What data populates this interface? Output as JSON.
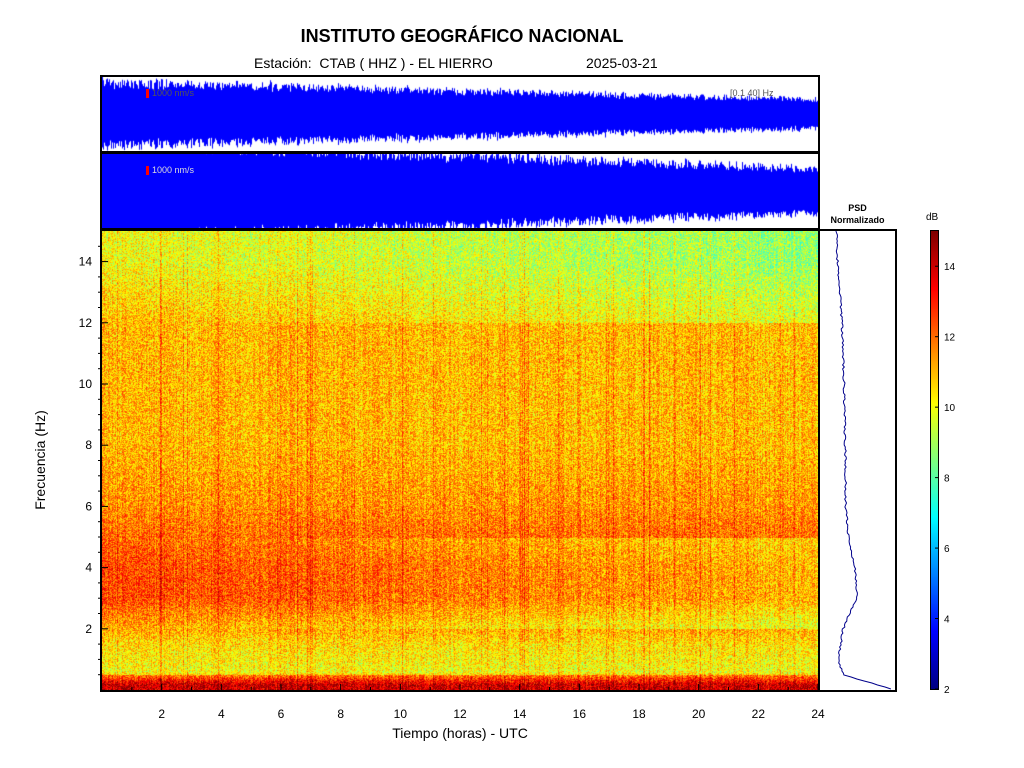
{
  "header": {
    "title": "INSTITUTO GEOGRÁFICO NACIONAL",
    "station": "Estación:  CTAB ( HHZ ) - EL HIERRO",
    "date": "2025-03-21"
  },
  "waveforms": {
    "filtered_band_label": "[0.1 40] Hz",
    "scale_label_top": "1000 nm/s",
    "scale_label_bottom": "1000 nm/s",
    "trace_color": "#0000ff",
    "scale_marker_color": "#ff0000"
  },
  "psd": {
    "title_line1": "PSD",
    "title_line2": "Normalizado",
    "line_color": "#00008b"
  },
  "colorbar": {
    "label": "dB",
    "ticks": [
      2,
      4,
      6,
      8,
      10,
      12,
      14
    ],
    "range": [
      2,
      15
    ],
    "colormap": "jet"
  },
  "chart_data": {
    "type": "heatmap",
    "xlabel": "Tiempo (horas) - UTC",
    "ylabel": "Frecuencia  (Hz)",
    "xlim": [
      0,
      24
    ],
    "ylim": [
      0,
      15
    ],
    "xticks": [
      2,
      4,
      6,
      8,
      10,
      12,
      14,
      16,
      18,
      20,
      22,
      24
    ],
    "yticks": [
      2,
      4,
      6,
      8,
      10,
      12,
      14
    ],
    "value_unit": "dB",
    "approx_levels_by_frequency": [
      {
        "freq": 0.2,
        "db": 13
      },
      {
        "freq": 0.6,
        "db": 10
      },
      {
        "freq": 1.5,
        "db": 10.5
      },
      {
        "freq": 3,
        "db": 12.5
      },
      {
        "freq": 4,
        "db": 12.5
      },
      {
        "freq": 6,
        "db": 11.5
      },
      {
        "freq": 8,
        "db": 11
      },
      {
        "freq": 10,
        "db": 11
      },
      {
        "freq": 12,
        "db": 11
      },
      {
        "freq": 14,
        "db": 10
      }
    ],
    "psd_profile": [
      {
        "freq": 0.1,
        "level": 0.95
      },
      {
        "freq": 0.5,
        "level": 0.2
      },
      {
        "freq": 1.0,
        "level": 0.12
      },
      {
        "freq": 2.0,
        "level": 0.2
      },
      {
        "freq": 3.0,
        "level": 0.45
      },
      {
        "freq": 4.0,
        "level": 0.42
      },
      {
        "freq": 5.0,
        "level": 0.3
      },
      {
        "freq": 6.0,
        "level": 0.25
      },
      {
        "freq": 8.0,
        "level": 0.24
      },
      {
        "freq": 10.0,
        "level": 0.22
      },
      {
        "freq": 12.0,
        "level": 0.18
      },
      {
        "freq": 14.0,
        "level": 0.1
      },
      {
        "freq": 15.0,
        "level": 0.08
      }
    ]
  }
}
